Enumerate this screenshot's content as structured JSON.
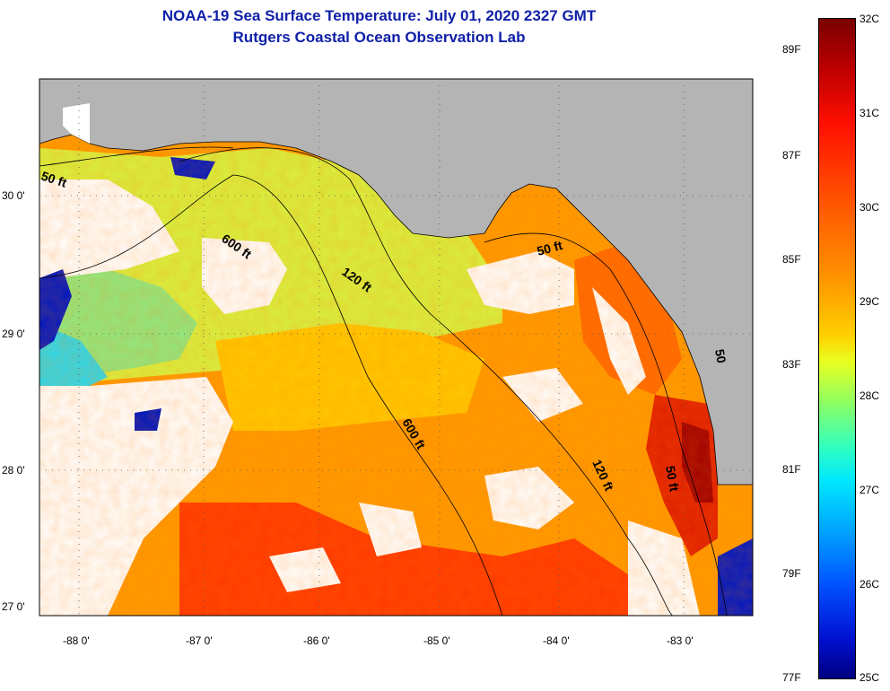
{
  "title": {
    "line1": "NOAA-19 Sea Surface Temperature:  July 01, 2020 2327 GMT",
    "line2": "Rutgers Coastal Ocean Observation Lab"
  },
  "map": {
    "lat_labels": [
      "30 0'",
      "29 0'",
      "28 0'",
      "27 0'"
    ],
    "lon_labels": [
      "-88 0'",
      "-87 0'",
      "-86 0'",
      "-85 0'",
      "-84 0'",
      "-83 0'"
    ],
    "contour_labels": [
      "50 ft",
      "600 ft",
      "120 ft",
      "50 ft",
      "600 ft",
      "120 ft",
      "50 ft",
      "50"
    ],
    "colors": {
      "land": "#b4b4b4",
      "cloud": "#ffffff",
      "warm": "#ff6a00",
      "cool": "#00e0ff"
    }
  },
  "colorbar": {
    "fahrenheit": [
      "89F",
      "87F",
      "85F",
      "83F",
      "81F",
      "79F",
      "77F"
    ],
    "celsius": [
      "32C",
      "31C",
      "30C",
      "29C",
      "28C",
      "27C",
      "26C",
      "25C"
    ]
  }
}
